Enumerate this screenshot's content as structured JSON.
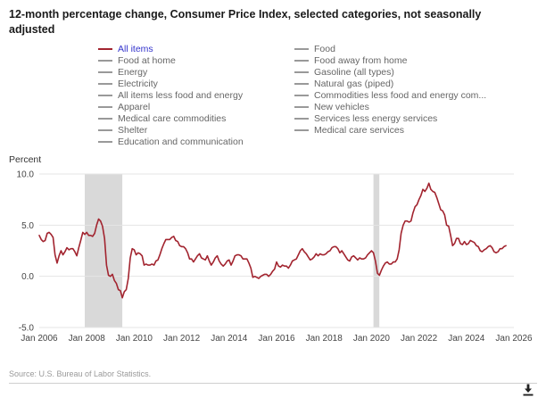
{
  "header": {
    "title": "12-month percentage change, Consumer Price Index, selected categories, not seasonally adjusted"
  },
  "legend": {
    "active_style": {
      "swatch_color": "#a2242f",
      "text_color": "#3333cc"
    },
    "inactive_style": {
      "swatch_color": "#999999",
      "text_color": "#666666"
    },
    "col1": [
      {
        "label": "All items",
        "active": true
      },
      {
        "label": "Food at home"
      },
      {
        "label": "Energy"
      },
      {
        "label": "Electricity"
      },
      {
        "label": "All items less food and energy"
      },
      {
        "label": "Apparel"
      },
      {
        "label": "Medical care commodities"
      },
      {
        "label": "Shelter"
      },
      {
        "label": "Education and communication"
      }
    ],
    "col2": [
      {
        "label": "Food"
      },
      {
        "label": "Food away from home"
      },
      {
        "label": "Gasoline (all types)"
      },
      {
        "label": "Natural gas (piped)"
      },
      {
        "label": "Commodities less food and energy com..."
      },
      {
        "label": "New vehicles"
      },
      {
        "label": "Services less energy services"
      },
      {
        "label": "Medical care services"
      }
    ]
  },
  "chart_data": {
    "type": "line",
    "title": "12-month percentage change, Consumer Price Index, selected categories, not seasonally adjusted",
    "ylabel": "Percent",
    "xlabel": "",
    "ylim": [
      -5,
      10
    ],
    "yticks": [
      10,
      5,
      0,
      -5
    ],
    "ytick_labels": [
      "10.0",
      "5.0",
      "0.0",
      "-5.0"
    ],
    "x_start": "2006-01",
    "x_end": "2026-01",
    "x_tick_interval_months": 24,
    "x_tick_labels": [
      "Jan 2006",
      "Jan 2008",
      "Jan 2010",
      "Jan 2012",
      "Jan 2014",
      "Jan 2016",
      "Jan 2018",
      "Jan 2020",
      "Jan 2022",
      "Jan 2024",
      "Jan 2026"
    ],
    "grid": "horizontal",
    "legend_position": "top",
    "band_color": "#d9d9d9",
    "recession_bands": [
      {
        "start": "2007-12",
        "end": "2009-06"
      },
      {
        "start": "2020-02",
        "end": "2020-04"
      }
    ],
    "series": [
      {
        "name": "All items",
        "color": "#a2242f",
        "x_start": "2006-01",
        "frequency": "monthly",
        "values": [
          4.0,
          3.6,
          3.4,
          3.5,
          4.2,
          4.3,
          4.1,
          3.8,
          2.1,
          1.3,
          2.0,
          2.5,
          2.1,
          2.4,
          2.8,
          2.6,
          2.7,
          2.7,
          2.4,
          2.0,
          2.8,
          3.5,
          4.3,
          4.1,
          4.3,
          4.0,
          4.0,
          3.9,
          4.2,
          5.0,
          5.6,
          5.4,
          4.9,
          3.7,
          1.1,
          0.1,
          0.0,
          0.2,
          -0.4,
          -0.7,
          -1.3,
          -1.4,
          -2.1,
          -1.5,
          -1.3,
          -0.2,
          1.8,
          2.7,
          2.6,
          2.1,
          2.3,
          2.2,
          2.0,
          1.1,
          1.2,
          1.1,
          1.1,
          1.2,
          1.1,
          1.5,
          1.6,
          2.1,
          2.7,
          3.2,
          3.6,
          3.6,
          3.6,
          3.8,
          3.9,
          3.5,
          3.4,
          3.0,
          2.9,
          2.9,
          2.7,
          2.3,
          1.7,
          1.7,
          1.4,
          1.7,
          2.0,
          2.2,
          1.8,
          1.7,
          1.6,
          2.0,
          1.5,
          1.1,
          1.4,
          1.8,
          2.0,
          1.5,
          1.2,
          1.0,
          1.2,
          1.5,
          1.6,
          1.1,
          1.5,
          2.0,
          2.1,
          2.1,
          2.0,
          1.7,
          1.7,
          1.7,
          1.3,
          0.8,
          -0.1,
          0.0,
          -0.1,
          -0.2,
          0.0,
          0.1,
          0.2,
          0.2,
          0.0,
          0.2,
          0.5,
          0.7,
          1.4,
          1.0,
          0.9,
          1.1,
          1.0,
          1.0,
          0.8,
          1.1,
          1.5,
          1.6,
          1.7,
          2.1,
          2.5,
          2.7,
          2.4,
          2.2,
          1.9,
          1.6,
          1.7,
          1.9,
          2.2,
          2.0,
          2.2,
          2.1,
          2.1,
          2.2,
          2.4,
          2.5,
          2.8,
          2.9,
          2.9,
          2.7,
          2.3,
          2.5,
          2.2,
          1.9,
          1.6,
          1.5,
          1.9,
          2.0,
          1.8,
          1.6,
          1.8,
          1.7,
          1.7,
          1.8,
          2.1,
          2.3,
          2.5,
          2.3,
          1.5,
          0.3,
          0.1,
          0.6,
          1.0,
          1.3,
          1.4,
          1.2,
          1.2,
          1.4,
          1.4,
          1.7,
          2.6,
          4.2,
          5.0,
          5.4,
          5.4,
          5.3,
          5.4,
          6.2,
          6.8,
          7.0,
          7.5,
          7.9,
          8.5,
          8.3,
          8.6,
          9.1,
          8.5,
          8.3,
          8.2,
          7.7,
          7.1,
          6.5,
          6.4,
          6.0,
          5.0,
          4.9,
          4.0,
          3.0,
          3.2,
          3.7,
          3.7,
          3.2,
          3.1,
          3.4,
          3.1,
          3.2,
          3.5,
          3.4,
          3.3,
          3.0,
          2.9,
          2.5,
          2.4,
          2.6,
          2.7,
          2.9,
          3.0,
          2.8,
          2.4,
          2.3,
          2.4,
          2.7,
          2.7,
          2.9,
          3.0
        ]
      }
    ]
  },
  "footer": {
    "source": "Source: U.S. Bureau of Labor Statistics."
  }
}
